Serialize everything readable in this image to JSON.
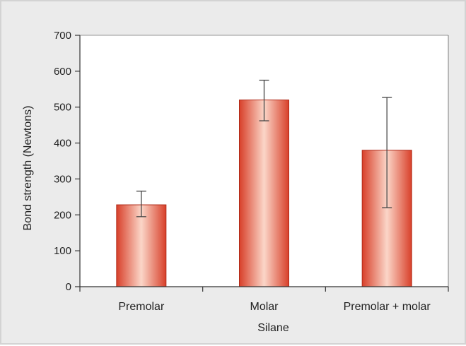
{
  "chart_data": {
    "type": "bar",
    "categories": [
      "Premolar",
      "Molar",
      "Premolar + molar"
    ],
    "values": [
      228,
      520,
      380
    ],
    "error_low": [
      195,
      462,
      220
    ],
    "error_high": [
      266,
      575,
      527
    ],
    "xlabel": "Silane",
    "ylabel": "Bond strength (Newtons)",
    "ylim": [
      0,
      700
    ],
    "yticks": [
      0,
      100,
      200,
      300,
      400,
      500,
      600,
      700
    ],
    "grid": false,
    "colors": {
      "bar_edge": "#d8402a",
      "bar_center": "#fbd6c8",
      "bar_outline": "#b02a18",
      "background": "#ebebeb",
      "plot_area": "#ffffff",
      "axis": "#333333",
      "error_bar": "#444444"
    }
  }
}
